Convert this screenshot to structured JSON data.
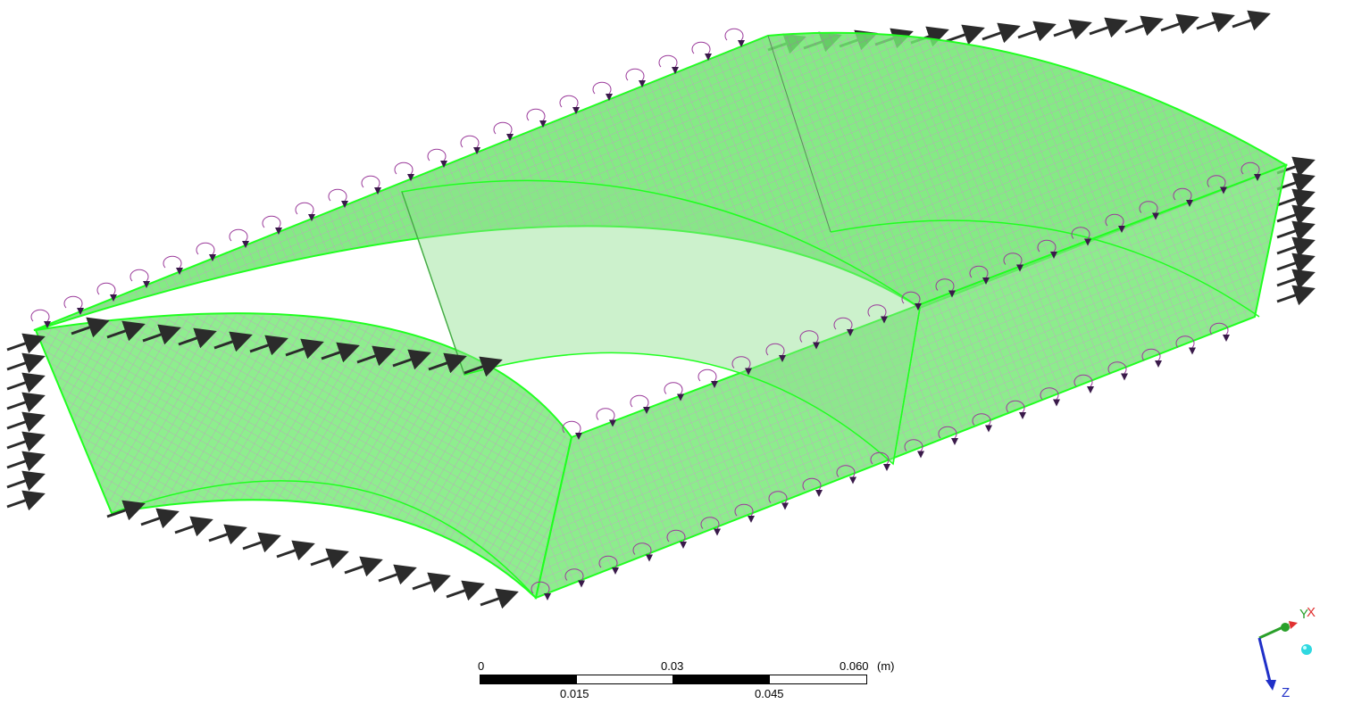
{
  "viewport": {
    "background": "#ffffff",
    "model_color": "#2ee62e",
    "mesh_color": "#b07ab0",
    "load_arrow_color": "#2b2b2b",
    "moment_color": "#3a1a4a",
    "highlight": "#20ff20"
  },
  "scale_bar": {
    "top_labels": [
      "0",
      "0.03",
      "0.060"
    ],
    "bottom_labels": [
      "0.015",
      "0.045"
    ],
    "unit": "(m)"
  },
  "triad": {
    "axes": [
      {
        "label": "Y",
        "color": "#2aa02a",
        "icon": "y-axis-arrow-icon"
      },
      {
        "label": "X",
        "color": "#e03030",
        "icon": "x-axis-arrow-icon"
      },
      {
        "label": "Z",
        "color": "#2030c8",
        "icon": "z-axis-arrow-icon"
      }
    ],
    "center_icon": "isometric-view-ball-icon"
  }
}
